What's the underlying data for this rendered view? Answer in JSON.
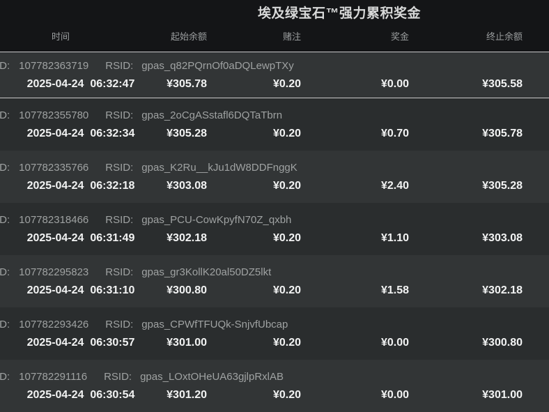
{
  "title": "埃及绿宝石™强力累积奖金",
  "labels": {
    "id": "ID:",
    "rsid": "RSID:"
  },
  "columns": {
    "time": "时间",
    "start_balance": "起始余额",
    "bet": "赌注",
    "win": "奖金",
    "end_balance": "终止余额"
  },
  "rows": [
    {
      "highlight": true,
      "id": "107782363719",
      "rsid": "gpas_q82PQrnOf0aDQLewpTXy",
      "time": "2025-04-24  06:32:47",
      "start": "¥305.78",
      "bet": "¥0.20",
      "win": "¥0.00",
      "end": "¥305.58"
    },
    {
      "highlight": false,
      "id": "107782355780",
      "rsid": "gpas_2oCgASstafl6DQTaTbrn",
      "time": "2025-04-24  06:32:34",
      "start": "¥305.28",
      "bet": "¥0.20",
      "win": "¥0.70",
      "end": "¥305.78"
    },
    {
      "highlight": false,
      "id": "107782335766",
      "rsid": "gpas_K2Ru__kJu1dW8DDFnggK",
      "time": "2025-04-24  06:32:18",
      "start": "¥303.08",
      "bet": "¥0.20",
      "win": "¥2.40",
      "end": "¥305.28"
    },
    {
      "highlight": false,
      "id": "107782318466",
      "rsid": "gpas_PCU-CowKpyfN70Z_qxbh",
      "time": "2025-04-24  06:31:49",
      "start": "¥302.18",
      "bet": "¥0.20",
      "win": "¥1.10",
      "end": "¥303.08"
    },
    {
      "highlight": false,
      "id": "107782295823",
      "rsid": "gpas_gr3KollK20al50DZ5lkt",
      "time": "2025-04-24  06:31:10",
      "start": "¥300.80",
      "bet": "¥0.20",
      "win": "¥1.58",
      "end": "¥302.18"
    },
    {
      "highlight": false,
      "id": "107782293426",
      "rsid": "gpas_CPWfTFUQk-SnjvfUbcap",
      "time": "2025-04-24  06:30:57",
      "start": "¥301.00",
      "bet": "¥0.20",
      "win": "¥0.00",
      "end": "¥300.80"
    },
    {
      "highlight": false,
      "id": "107782291116",
      "rsid": "gpas_LOxtOHeUA63gjlpRxlAB",
      "time": "2025-04-24  06:30:54",
      "start": "¥301.20",
      "bet": "¥0.20",
      "win": "¥0.00",
      "end": "¥301.00"
    }
  ],
  "colors": {
    "header_bg": "#141517",
    "row_light": "#323536",
    "row_dark": "#2a2d2e",
    "highlight_border": "#c9c9c9",
    "value_text": "#f2f3f3",
    "muted_text": "#9fa2a2"
  }
}
